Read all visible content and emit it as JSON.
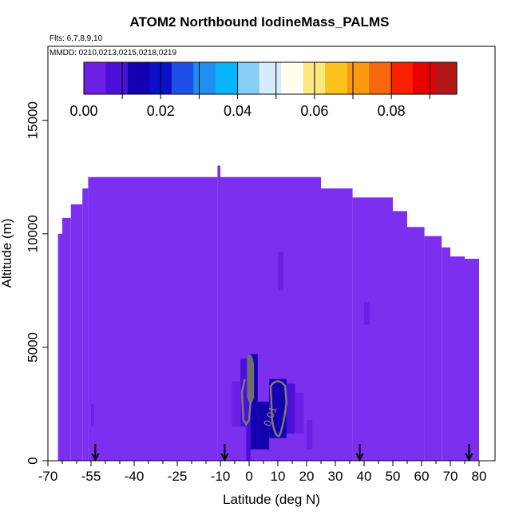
{
  "chart_data": {
    "type": "heatmap",
    "title": "ATOM2 Northbound IodineMass_PALMS",
    "flights_note": "Flts: 6,7,8,9,10",
    "dates_note": "MMDD: 0210,0213,0215,0218,0219",
    "xlabel": "Latitude (deg N)",
    "ylabel": "Altitude (m)",
    "xlim": [
      -70,
      83
    ],
    "ylim": [
      0,
      17500
    ],
    "x_ticks": [
      -70,
      -55,
      -40,
      -25,
      -10,
      0,
      10,
      20,
      30,
      40,
      50,
      60,
      70,
      80
    ],
    "x_tick_labels": [
      "-70",
      "-55",
      "-40",
      "-25",
      "-10",
      "0",
      "10",
      "20",
      "30",
      "40",
      "50",
      "60",
      "70",
      "80"
    ],
    "x_minor_ticks": [
      -65,
      -60,
      -50,
      -45,
      -35,
      -30,
      -20,
      -15,
      -5,
      5,
      15,
      25,
      35,
      45,
      55,
      65,
      75
    ],
    "y_ticks": [
      0,
      5000,
      10000,
      15000
    ],
    "y_tick_labels": [
      "0",
      "5000",
      "10000",
      "15000"
    ],
    "colorbar": {
      "min": 0.0,
      "max": 0.097,
      "ticks": [
        0.0,
        0.02,
        0.04,
        0.06,
        0.08
      ],
      "tick_labels": [
        "0.00",
        "0.02",
        "0.04",
        "0.06",
        "0.08"
      ],
      "colors": [
        "#6d1fe6",
        "#4a10d8",
        "#1300b0",
        "#0a10c8",
        "#1f4fe8",
        "#1e8ff0",
        "#08b4fb",
        "#87cdf5",
        "#d7ecfa",
        "#fffff0",
        "#fde880",
        "#fbc21e",
        "#fb9a12",
        "#f7680a",
        "#fd2000",
        "#e80000",
        "#b21616"
      ]
    },
    "background_value_color": "#7d2ff0",
    "profile_top": [
      {
        "x": [
          -66.5,
          -65
        ],
        "y": 10000
      },
      {
        "x": [
          -65,
          -62
        ],
        "y": 10700
      },
      {
        "x": [
          -62,
          -58
        ],
        "y": 11300
      },
      {
        "x": [
          -58,
          -56
        ],
        "y": 12000
      },
      {
        "x": [
          -56,
          -11
        ],
        "y": 12500
      },
      {
        "x": [
          -11,
          -10
        ],
        "y": 13000
      },
      {
        "x": [
          -10,
          25
        ],
        "y": 12500
      },
      {
        "x": [
          25,
          36
        ],
        "y": 12000
      },
      {
        "x": [
          36,
          50
        ],
        "y": 11600
      },
      {
        "x": [
          50,
          55
        ],
        "y": 11000
      },
      {
        "x": [
          55,
          61
        ],
        "y": 10300
      },
      {
        "x": [
          61,
          67
        ],
        "y": 9900
      },
      {
        "x": [
          67,
          70
        ],
        "y": 9400
      },
      {
        "x": [
          70,
          75
        ],
        "y": 9000
      },
      {
        "x": [
          75,
          80
        ],
        "y": 8900
      }
    ],
    "cells": [
      {
        "x": [
          -1,
          0.5
        ],
        "y": [
          0,
          4500
        ],
        "value": 0.01
      },
      {
        "x": [
          0.5,
          3
        ],
        "y": [
          500,
          4700
        ],
        "value": 0.012
      },
      {
        "x": [
          3,
          7
        ],
        "y": [
          500,
          2600
        ],
        "value": 0.013
      },
      {
        "x": [
          7,
          13
        ],
        "y": [
          1000,
          3600
        ],
        "value": 0.014
      },
      {
        "x": [
          13,
          16
        ],
        "y": [
          1200,
          3400
        ],
        "value": 0.01
      },
      {
        "x": [
          -3,
          -1
        ],
        "y": [
          1500,
          4500
        ],
        "value": 0.006
      },
      {
        "x": [
          -6,
          -3
        ],
        "y": [
          1500,
          3500
        ],
        "value": 0.004
      },
      {
        "x": [
          16,
          19
        ],
        "y": [
          1200,
          3000
        ],
        "value": 0.004
      },
      {
        "x": [
          10,
          12
        ],
        "y": [
          7500,
          9200
        ],
        "value": 0.004
      },
      {
        "x": [
          20,
          22
        ],
        "y": [
          500,
          1800
        ],
        "value": 0.004
      },
      {
        "x": [
          40,
          42
        ],
        "y": [
          6000,
          7000
        ],
        "value": 0.004
      },
      {
        "x": [
          -55,
          -54
        ],
        "y": [
          1500,
          2500
        ],
        "value": 0.004
      }
    ],
    "contours": [
      {
        "label": "0.01",
        "label_at": [
          8.5,
          1900
        ]
      }
    ],
    "arrows_latitude": [
      -53.5,
      -8.5,
      38.5,
      76.5
    ]
  }
}
